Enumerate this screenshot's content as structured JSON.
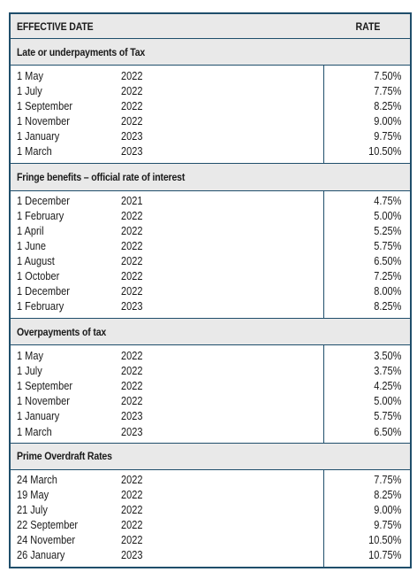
{
  "header": {
    "date_label": "EFFECTIVE DATE",
    "rate_label": "RATE"
  },
  "sections": [
    {
      "title": "Late or underpayments of Tax",
      "rows": [
        {
          "date": "1 May",
          "year": "2022",
          "rate": "7.50%"
        },
        {
          "date": "1 July",
          "year": "2022",
          "rate": "7.75%"
        },
        {
          "date": "1 September",
          "year": "2022",
          "rate": "8.25%"
        },
        {
          "date": "1 November",
          "year": "2022",
          "rate": "9.00%"
        },
        {
          "date": "1 January",
          "year": "2023",
          "rate": "9.75%"
        },
        {
          "date": "1 March",
          "year": "2023",
          "rate": "10.50%"
        }
      ]
    },
    {
      "title": "Fringe benefits – official rate of interest",
      "rows": [
        {
          "date": "1 December",
          "year": "2021",
          "rate": "4.75%"
        },
        {
          "date": "1 February",
          "year": "2022",
          "rate": "5.00%"
        },
        {
          "date": "1 April",
          "year": "2022",
          "rate": "5.25%"
        },
        {
          "date": "1 June",
          "year": "2022",
          "rate": "5.75%"
        },
        {
          "date": "1 August",
          "year": "2022",
          "rate": "6.50%"
        },
        {
          "date": "1 October",
          "year": "2022",
          "rate": "7.25%"
        },
        {
          "date": "1 December",
          "year": "2022",
          "rate": "8.00%"
        },
        {
          "date": "1 February",
          "year": "2023",
          "rate": "8.25%"
        }
      ]
    },
    {
      "title": "Overpayments of tax",
      "rows": [
        {
          "date": "1 May",
          "year": "2022",
          "rate": "3.50%"
        },
        {
          "date": "1 July",
          "year": "2022",
          "rate": "3.75%"
        },
        {
          "date": "1 September",
          "year": "2022",
          "rate": "4.25%"
        },
        {
          "date": "1 November",
          "year": "2022",
          "rate": "5.00%"
        },
        {
          "date": "1 January",
          "year": "2023",
          "rate": "5.75%"
        },
        {
          "date": "1 March",
          "year": "2023",
          "rate": "6.50%"
        }
      ]
    },
    {
      "title": "Prime Overdraft Rates",
      "rows": [
        {
          "date": "24 March",
          "year": "2022",
          "rate": "7.75%"
        },
        {
          "date": "19 May",
          "year": "2022",
          "rate": "8.25%"
        },
        {
          "date": "21 July",
          "year": "2022",
          "rate": "9.00%"
        },
        {
          "date": "22 September",
          "year": "2022",
          "rate": "9.75%"
        },
        {
          "date": "24 November",
          "year": "2022",
          "rate": "10.50%"
        },
        {
          "date": "26 January",
          "year": "2023",
          "rate": "10.75%"
        }
      ]
    }
  ],
  "colors": {
    "border": "#1f4e6b",
    "band": "#e9e9e9"
  }
}
